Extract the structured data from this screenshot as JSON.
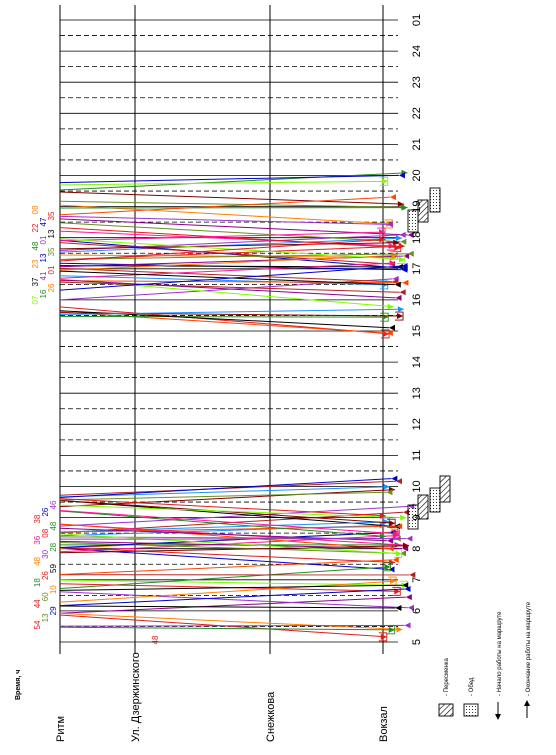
{
  "diagram": {
    "axis_title": "Время, ч",
    "hours": [
      "01",
      "24",
      "23",
      "22",
      "21",
      "20",
      "19",
      "18",
      "17",
      "16",
      "15",
      "14",
      "13",
      "12",
      "11",
      "10",
      "9",
      "8",
      "7",
      "6",
      "5"
    ],
    "stations": [
      "Ритм",
      "Ул. Дзержинского",
      "Снежкова",
      "Вокзал"
    ],
    "colors": {
      "grid": "#000000",
      "series": [
        "#e41a1c",
        "#0000cc",
        "#228b22",
        "#9932cc",
        "#ff7f00",
        "#b22222",
        "#1e90ff",
        "#8b008b",
        "#ff1493",
        "#6b8e23",
        "#800000",
        "#000000",
        "#7cfc00",
        "#ff4500"
      ]
    },
    "morning_labels": [
      {
        "text": "54",
        "color": "#e41a1c"
      },
      {
        "text": "13",
        "color": "#6b8e23"
      },
      {
        "text": "29",
        "color": "#0000cc"
      },
      {
        "text": "44",
        "color": "#e41a1c"
      },
      {
        "text": "60",
        "color": "#6b8e23"
      },
      {
        "text": "10",
        "color": "#ff7f00"
      },
      {
        "text": "18",
        "color": "#228b22"
      },
      {
        "text": "26",
        "color": "#e41a1c"
      },
      {
        "text": "59",
        "color": "#000000"
      },
      {
        "text": "48",
        "color": "#ff7f00"
      },
      {
        "text": "30",
        "color": "#9932cc"
      },
      {
        "text": "28",
        "color": "#228b22"
      },
      {
        "text": "36",
        "color": "#ff1493"
      },
      {
        "text": "08",
        "color": "#e41a1c"
      },
      {
        "text": "48",
        "color": "#228b22"
      },
      {
        "text": "38",
        "color": "#e41a1c"
      },
      {
        "text": "26",
        "color": "#0000cc"
      },
      {
        "text": "46",
        "color": "#9932cc"
      }
    ],
    "evening_labels": [
      {
        "text": "07",
        "color": "#7cfc00"
      },
      {
        "text": "16",
        "color": "#228b22"
      },
      {
        "text": "26",
        "color": "#ff7f00"
      },
      {
        "text": "37",
        "color": "#000000"
      },
      {
        "text": "41",
        "color": "#9932cc"
      },
      {
        "text": "01",
        "color": "#e41a1c"
      },
      {
        "text": "23",
        "color": "#ff7f00"
      },
      {
        "text": "13",
        "color": "#0000cc"
      },
      {
        "text": "35",
        "color": "#6b8e23"
      },
      {
        "text": "48",
        "color": "#228b22"
      },
      {
        "text": "01",
        "color": "#9932cc"
      },
      {
        "text": "13",
        "color": "#000000"
      },
      {
        "text": "22",
        "color": "#e41a1c"
      },
      {
        "text": "47",
        "color": "#0000cc"
      },
      {
        "text": "35",
        "color": "#e41a1c"
      },
      {
        "text": "08",
        "color": "#ff7f00"
      }
    ],
    "extra_label": {
      "text": "48",
      "color": "#e41a1c"
    },
    "legend": [
      {
        "text": "- Пересменка",
        "symbol": "hatched"
      },
      {
        "text": "- Обед",
        "symbol": "dotted"
      },
      {
        "text": "- Начало работы на маршруте",
        "symbol": "arrow-left"
      },
      {
        "text": "- Окончание работы на маршруте",
        "symbol": "arrow-right"
      }
    ]
  }
}
